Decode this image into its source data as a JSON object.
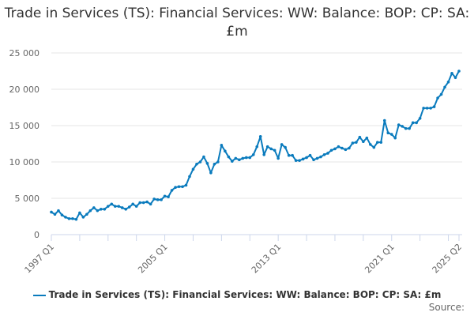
{
  "chart_data": {
    "type": "line",
    "title": "Trade in Services (TS): Financial Services: WW: Balance: BOP: CP: SA: £m",
    "xlabel": "",
    "ylabel": "",
    "start": "1997 Q1",
    "end": "2025 Q2",
    "x_tick_labels": [
      "1997 Q1",
      "2005 Q1",
      "2013 Q1",
      "2021 Q1",
      "2025 Q2"
    ],
    "y_ticks": [
      0,
      5000,
      10000,
      15000,
      20000,
      25000
    ],
    "y_tick_labels": [
      "0",
      "5 000",
      "10 000",
      "15 000",
      "20 000",
      "25 000"
    ],
    "ylim": [
      0,
      25000
    ],
    "grid": true,
    "legend_position": "bottom",
    "series": [
      {
        "name": "Trade in Services (TS): Financial Services: WW: Balance: BOP: CP: SA: £m",
        "color": "#0a7bbd",
        "values": [
          3100,
          2800,
          3300,
          2700,
          2400,
          2200,
          2200,
          2100,
          3000,
          2400,
          2800,
          3300,
          3700,
          3300,
          3500,
          3500,
          3900,
          4200,
          3900,
          3900,
          3700,
          3500,
          3800,
          4200,
          3900,
          4400,
          4400,
          4500,
          4200,
          4900,
          4800,
          4800,
          5300,
          5200,
          6100,
          6500,
          6600,
          6600,
          6800,
          8000,
          9000,
          9700,
          10000,
          10700,
          9800,
          8500,
          9700,
          10000,
          12300,
          11500,
          10700,
          10100,
          10500,
          10300,
          10500,
          10600,
          10600,
          11000,
          12100,
          13500,
          11000,
          12100,
          11800,
          11600,
          10500,
          12400,
          12000,
          10900,
          10900,
          10200,
          10200,
          10400,
          10600,
          10900,
          10300,
          10500,
          10700,
          11000,
          11200,
          11600,
          11800,
          12100,
          11900,
          11700,
          11900,
          12600,
          12700,
          13400,
          12800,
          13300,
          12400,
          12000,
          12700,
          12700,
          15700,
          14000,
          13800,
          13300,
          15100,
          14900,
          14600,
          14600,
          15400,
          15400,
          16000,
          17400,
          17400,
          17400,
          17600,
          18800,
          19300,
          20300,
          21000,
          22200,
          21600,
          22500
        ]
      }
    ]
  },
  "source_label": "Source:"
}
